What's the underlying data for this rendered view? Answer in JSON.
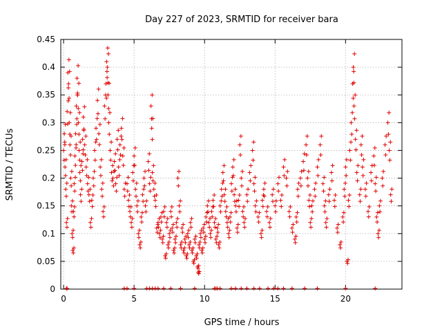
{
  "chart_data": {
    "type": "scatter",
    "title": "Day 227 of 2023, SRMTID for receiver bara",
    "xlabel": "GPS time / hours",
    "ylabel": "SRMTID / TECUs",
    "xlim": [
      -0.2,
      24
    ],
    "ylim": [
      0,
      0.45
    ],
    "xticks": [
      0,
      5,
      10,
      15,
      20
    ],
    "yticks": [
      0,
      0.05,
      0.1,
      0.15,
      0.2,
      0.25,
      0.3,
      0.35,
      0.4,
      0.45
    ],
    "ytick_labels": [
      "0",
      "0.05",
      "0.1",
      "0.15",
      "0.2",
      "0.25",
      "0.3",
      "0.35",
      "0.4",
      "0.45"
    ],
    "xtick_labels": [
      "0",
      "5",
      "10",
      "15",
      "20"
    ],
    "grid": true,
    "marker": "+",
    "color": "#e00000",
    "series": [
      {
        "name": "SRMTID",
        "points": [
          [
            0.0,
            0.25
          ],
          [
            0.05,
            0.28
          ],
          [
            0.1,
            0.22
          ],
          [
            0.15,
            0.18
          ],
          [
            0.2,
            0.12
          ],
          [
            0.25,
            0.32
          ],
          [
            0.3,
            0.39
          ],
          [
            0.35,
            0.37
          ],
          [
            0.4,
            0.3
          ],
          [
            0.45,
            0.26
          ],
          [
            0.5,
            0.2
          ],
          [
            0.55,
            0.15
          ],
          [
            0.6,
            0.1
          ],
          [
            0.65,
            0.07
          ],
          [
            0.7,
            0.14
          ],
          [
            0.75,
            0.19
          ],
          [
            0.8,
            0.24
          ],
          [
            0.85,
            0.28
          ],
          [
            0.9,
            0.33
          ],
          [
            0.95,
            0.38
          ],
          [
            1.0,
            0.35
          ],
          [
            1.05,
            0.3
          ],
          [
            1.1,
            0.25
          ],
          [
            1.15,
            0.21
          ],
          [
            1.2,
            0.17
          ],
          [
            1.3,
            0.23
          ],
          [
            1.35,
            0.27
          ],
          [
            1.4,
            0.31
          ],
          [
            1.5,
            0.26
          ],
          [
            1.6,
            0.22
          ],
          [
            1.7,
            0.19
          ],
          [
            1.8,
            0.17
          ],
          [
            1.9,
            0.12
          ],
          [
            2.0,
            0.16
          ],
          [
            2.1,
            0.2
          ],
          [
            2.2,
            0.25
          ],
          [
            2.3,
            0.29
          ],
          [
            2.4,
            0.34
          ],
          [
            2.5,
            0.28
          ],
          [
            2.6,
            0.22
          ],
          [
            2.7,
            0.18
          ],
          [
            2.8,
            0.14
          ],
          [
            2.9,
            0.33
          ],
          [
            3.0,
            0.37
          ],
          [
            3.05,
            0.41
          ],
          [
            3.1,
            0.4
          ],
          [
            3.15,
            0.35
          ],
          [
            3.2,
            0.3
          ],
          [
            3.3,
            0.25
          ],
          [
            3.4,
            0.21
          ],
          [
            3.5,
            0.2
          ],
          [
            3.6,
            0.23
          ],
          [
            3.7,
            0.19
          ],
          [
            3.8,
            0.27
          ],
          [
            3.9,
            0.22
          ],
          [
            4.0,
            0.26
          ],
          [
            4.1,
            0.29
          ],
          [
            4.2,
            0.24
          ],
          [
            4.3,
            0.18
          ],
          [
            4.5,
            0.19
          ],
          [
            4.6,
            0.16
          ],
          [
            4.7,
            0.14
          ],
          [
            4.8,
            0.12
          ],
          [
            4.9,
            0.21
          ],
          [
            5.0,
            0.24
          ],
          [
            5.1,
            0.18
          ],
          [
            5.2,
            0.15
          ],
          [
            5.3,
            0.1
          ],
          [
            5.4,
            0.08
          ],
          [
            5.5,
            0.13
          ],
          [
            5.6,
            0.17
          ],
          [
            5.7,
            0.2
          ],
          [
            5.8,
            0.15
          ],
          [
            6.0,
            0.23
          ],
          [
            6.1,
            0.19
          ],
          [
            6.2,
            0.33
          ],
          [
            6.25,
            0.29
          ],
          [
            6.3,
            0.21
          ],
          [
            6.4,
            0.18
          ],
          [
            6.5,
            0.16
          ],
          [
            6.6,
            0.11
          ],
          [
            6.7,
            0.12
          ],
          [
            6.8,
            0.1
          ],
          [
            6.9,
            0.13
          ],
          [
            7.0,
            0.09
          ],
          [
            7.1,
            0.14
          ],
          [
            7.2,
            0.06
          ],
          [
            7.3,
            0.12
          ],
          [
            7.4,
            0.08
          ],
          [
            7.5,
            0.1
          ],
          [
            7.6,
            0.14
          ],
          [
            7.7,
            0.11
          ],
          [
            7.8,
            0.07
          ],
          [
            7.9,
            0.09
          ],
          [
            8.0,
            0.12
          ],
          [
            8.1,
            0.2
          ],
          [
            8.2,
            0.15
          ],
          [
            8.3,
            0.08
          ],
          [
            8.4,
            0.11
          ],
          [
            8.5,
            0.07
          ],
          [
            8.6,
            0.09
          ],
          [
            8.7,
            0.06
          ],
          [
            8.8,
            0.1
          ],
          [
            8.9,
            0.08
          ],
          [
            9.0,
            0.12
          ],
          [
            9.1,
            0.07
          ],
          [
            9.2,
            0.05
          ],
          [
            9.3,
            0.09
          ],
          [
            9.4,
            0.06
          ],
          [
            9.5,
            0.04
          ],
          [
            9.55,
            0.03
          ],
          [
            9.6,
            0.08
          ],
          [
            9.7,
            0.1
          ],
          [
            9.8,
            0.07
          ],
          [
            9.9,
            0.11
          ],
          [
            10.0,
            0.09
          ],
          [
            10.1,
            0.13
          ],
          [
            10.2,
            0.15
          ],
          [
            10.3,
            0.12
          ],
          [
            10.4,
            0.1
          ],
          [
            10.5,
            0.14
          ],
          [
            10.6,
            0.16
          ],
          [
            10.7,
            0.12
          ],
          [
            10.8,
            0.09
          ],
          [
            10.9,
            0.11
          ],
          [
            11.0,
            0.08
          ],
          [
            11.1,
            0.15
          ],
          [
            11.2,
            0.18
          ],
          [
            11.3,
            0.21
          ],
          [
            11.4,
            0.17
          ],
          [
            11.5,
            0.14
          ],
          [
            11.6,
            0.12
          ],
          [
            11.7,
            0.1
          ],
          [
            11.8,
            0.13
          ],
          [
            11.9,
            0.19
          ],
          [
            12.0,
            0.22
          ],
          [
            12.1,
            0.17
          ],
          [
            12.2,
            0.15
          ],
          [
            12.3,
            0.11
          ],
          [
            12.4,
            0.16
          ],
          [
            12.5,
            0.26
          ],
          [
            12.6,
            0.2
          ],
          [
            12.7,
            0.14
          ],
          [
            12.8,
            0.12
          ],
          [
            13.0,
            0.17
          ],
          [
            13.2,
            0.21
          ],
          [
            13.4,
            0.25
          ],
          [
            13.5,
            0.19
          ],
          [
            13.6,
            0.15
          ],
          [
            13.8,
            0.13
          ],
          [
            14.0,
            0.1
          ],
          [
            14.1,
            0.16
          ],
          [
            14.2,
            0.18
          ],
          [
            14.4,
            0.14
          ],
          [
            14.6,
            0.12
          ],
          [
            14.8,
            0.17
          ],
          [
            15.0,
            0.15
          ],
          [
            15.2,
            0.19
          ],
          [
            15.4,
            0.16
          ],
          [
            15.6,
            0.22
          ],
          [
            15.8,
            0.2
          ],
          [
            16.0,
            0.14
          ],
          [
            16.2,
            0.11
          ],
          [
            16.4,
            0.09
          ],
          [
            16.5,
            0.13
          ],
          [
            16.6,
            0.18
          ],
          [
            16.8,
            0.2
          ],
          [
            17.0,
            0.23
          ],
          [
            17.2,
            0.26
          ],
          [
            17.3,
            0.2
          ],
          [
            17.4,
            0.16
          ],
          [
            17.5,
            0.12
          ],
          [
            17.6,
            0.15
          ],
          [
            17.8,
            0.18
          ],
          [
            18.0,
            0.22
          ],
          [
            18.2,
            0.26
          ],
          [
            18.4,
            0.19
          ],
          [
            18.5,
            0.15
          ],
          [
            18.6,
            0.12
          ],
          [
            18.8,
            0.17
          ],
          [
            19.0,
            0.21
          ],
          [
            19.2,
            0.16
          ],
          [
            19.4,
            0.11
          ],
          [
            19.6,
            0.08
          ],
          [
            19.8,
            0.13
          ],
          [
            19.9,
            0.18
          ],
          [
            20.0,
            0.22
          ],
          [
            20.1,
            0.05
          ],
          [
            20.2,
            0.16
          ],
          [
            20.3,
            0.25
          ],
          [
            20.4,
            0.3
          ],
          [
            20.5,
            0.37
          ],
          [
            20.55,
            0.4
          ],
          [
            20.6,
            0.33
          ],
          [
            20.7,
            0.27
          ],
          [
            20.8,
            0.21
          ],
          [
            21.0,
            0.17
          ],
          [
            21.1,
            0.26
          ],
          [
            21.2,
            0.22
          ],
          [
            21.4,
            0.18
          ],
          [
            21.6,
            0.14
          ],
          [
            21.8,
            0.21
          ],
          [
            22.0,
            0.24
          ],
          [
            22.1,
            0.19
          ],
          [
            22.2,
            0.13
          ],
          [
            22.3,
            0.1
          ],
          [
            22.4,
            0.15
          ],
          [
            22.6,
            0.2
          ],
          [
            22.8,
            0.26
          ],
          [
            23.0,
            0.3
          ],
          [
            23.1,
            0.25
          ],
          [
            23.2,
            0.17
          ]
        ]
      }
    ],
    "zero_markers": [
      0.2,
      0.25,
      4.3,
      4.5,
      5.0,
      5.9,
      6.1,
      6.3,
      6.5,
      6.7,
      7.1,
      7.6,
      8.3,
      9.3,
      10.7,
      10.8,
      10.9,
      11.1,
      11.9,
      12.2,
      12.6,
      13.0,
      13.5,
      13.9,
      14.5,
      14.9,
      15.2,
      15.6,
      16.2,
      17.1,
      18.0,
      20.0,
      22.1
    ]
  }
}
